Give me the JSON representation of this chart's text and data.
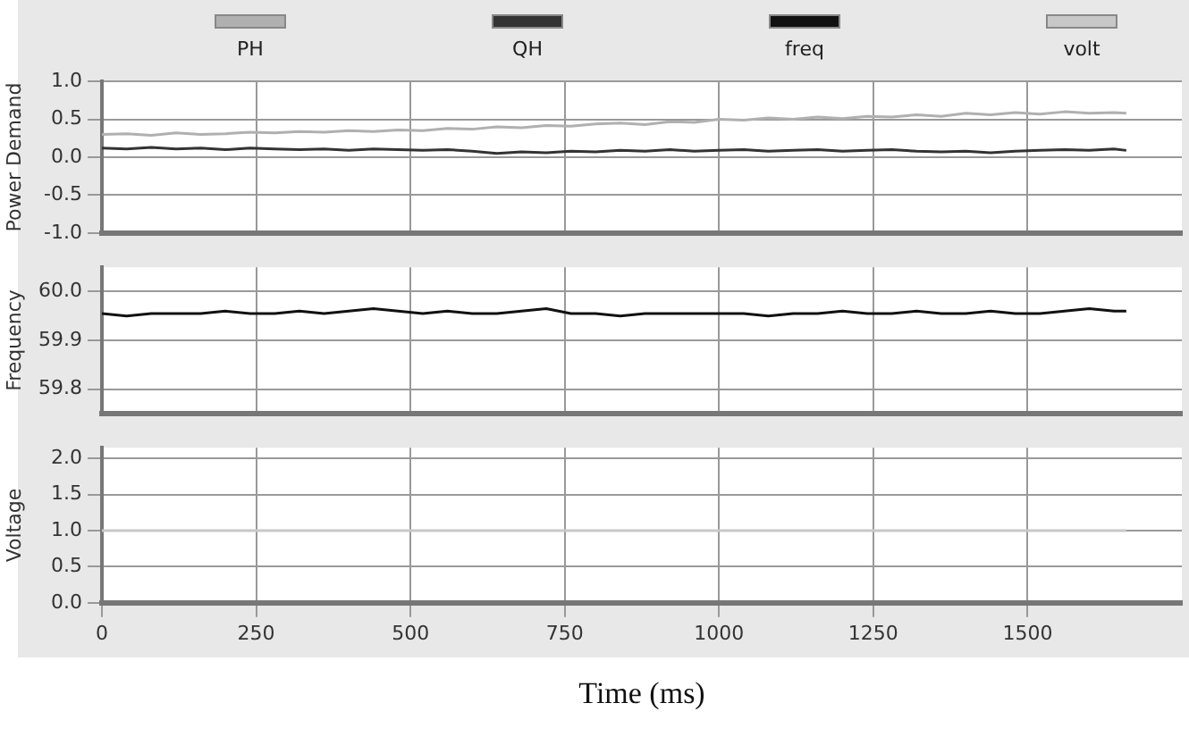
{
  "chart_data": [
    {
      "type": "line",
      "ylabel": "Power Demand",
      "legend": "top",
      "grid": true,
      "marker": "none",
      "tick_labels": "y",
      "xlim": [
        0,
        1750
      ],
      "xticks": [
        0,
        250,
        500,
        750,
        1000,
        1250,
        1500
      ],
      "ylim": [
        -1,
        1
      ],
      "yticks": [
        {
          "value": -1,
          "label": "-1.0"
        },
        -0.5,
        {
          "value": 0,
          "label": "0.0"
        },
        0.5,
        {
          "value": 1,
          "label": "1.0"
        }
      ],
      "x": [
        0,
        40,
        80,
        120,
        160,
        200,
        240,
        280,
        320,
        360,
        400,
        440,
        480,
        520,
        560,
        600,
        640,
        680,
        720,
        760,
        800,
        840,
        880,
        920,
        960,
        1000,
        1040,
        1080,
        1120,
        1160,
        1200,
        1240,
        1280,
        1320,
        1360,
        1400,
        1440,
        1480,
        1520,
        1560,
        1600,
        1640,
        1660
      ],
      "series": [
        {
          "name": "PH",
          "color": "#b0b0b0",
          "values": [
            0.3,
            0.31,
            0.29,
            0.32,
            0.3,
            0.31,
            0.33,
            0.32,
            0.34,
            0.33,
            0.35,
            0.34,
            0.36,
            0.35,
            0.38,
            0.37,
            0.4,
            0.39,
            0.42,
            0.41,
            0.44,
            0.45,
            0.43,
            0.47,
            0.46,
            0.5,
            0.49,
            0.52,
            0.5,
            0.53,
            0.51,
            0.54,
            0.53,
            0.56,
            0.54,
            0.58,
            0.56,
            0.59,
            0.57,
            0.6,
            0.58,
            0.59,
            0.58
          ]
        },
        {
          "name": "QH",
          "color": "#333333",
          "values": [
            0.12,
            0.11,
            0.13,
            0.11,
            0.12,
            0.1,
            0.12,
            0.11,
            0.1,
            0.11,
            0.09,
            0.11,
            0.1,
            0.09,
            0.1,
            0.08,
            0.05,
            0.07,
            0.06,
            0.08,
            0.07,
            0.09,
            0.08,
            0.1,
            0.08,
            0.09,
            0.1,
            0.08,
            0.09,
            0.1,
            0.08,
            0.09,
            0.1,
            0.08,
            0.07,
            0.08,
            0.06,
            0.08,
            0.09,
            0.1,
            0.09,
            0.11,
            0.09
          ]
        }
      ]
    },
    {
      "type": "line",
      "ylabel": "Frequency",
      "legend": "top",
      "grid": true,
      "marker": "none",
      "tick_labels": "y",
      "xlim": [
        0,
        1750
      ],
      "xticks": [
        0,
        250,
        500,
        750,
        1000,
        1250,
        1500
      ],
      "ylim": [
        59.75,
        60.05
      ],
      "yticks": [
        59.8,
        59.9,
        {
          "value": 60,
          "label": "60.0"
        }
      ],
      "x": [
        0,
        40,
        80,
        120,
        160,
        200,
        240,
        280,
        320,
        360,
        400,
        440,
        480,
        520,
        560,
        600,
        640,
        680,
        720,
        760,
        800,
        840,
        880,
        920,
        960,
        1000,
        1040,
        1080,
        1120,
        1160,
        1200,
        1240,
        1280,
        1320,
        1360,
        1400,
        1440,
        1480,
        1520,
        1560,
        1600,
        1640,
        1660
      ],
      "series": [
        {
          "name": "freq",
          "color": "#111111",
          "values": [
            59.955,
            59.95,
            59.955,
            59.955,
            59.955,
            59.96,
            59.955,
            59.955,
            59.96,
            59.955,
            59.96,
            59.965,
            59.96,
            59.955,
            59.96,
            59.955,
            59.955,
            59.96,
            59.965,
            59.955,
            59.955,
            59.95,
            59.955,
            59.955,
            59.955,
            59.955,
            59.955,
            59.95,
            59.955,
            59.955,
            59.96,
            59.955,
            59.955,
            59.96,
            59.955,
            59.955,
            59.96,
            59.955,
            59.955,
            59.96,
            59.965,
            59.96,
            59.96
          ]
        }
      ]
    },
    {
      "type": "line",
      "ylabel": "Voltage",
      "xlabel": "Time (ms)",
      "legend": "top",
      "grid": true,
      "marker": "none",
      "xlim": [
        0,
        1750
      ],
      "xticks": [
        0,
        250,
        500,
        750,
        1000,
        1250,
        1500
      ],
      "ylim": [
        0,
        2.15
      ],
      "yticks": [
        {
          "value": 0,
          "label": "0.0"
        },
        0.5,
        {
          "value": 1,
          "label": "1.0"
        },
        1.5,
        {
          "value": 2,
          "label": "2.0"
        }
      ],
      "x": [
        0,
        1660
      ],
      "series": [
        {
          "name": "volt",
          "color": "#c8c8c8",
          "values": [
            1,
            1
          ]
        }
      ]
    }
  ]
}
